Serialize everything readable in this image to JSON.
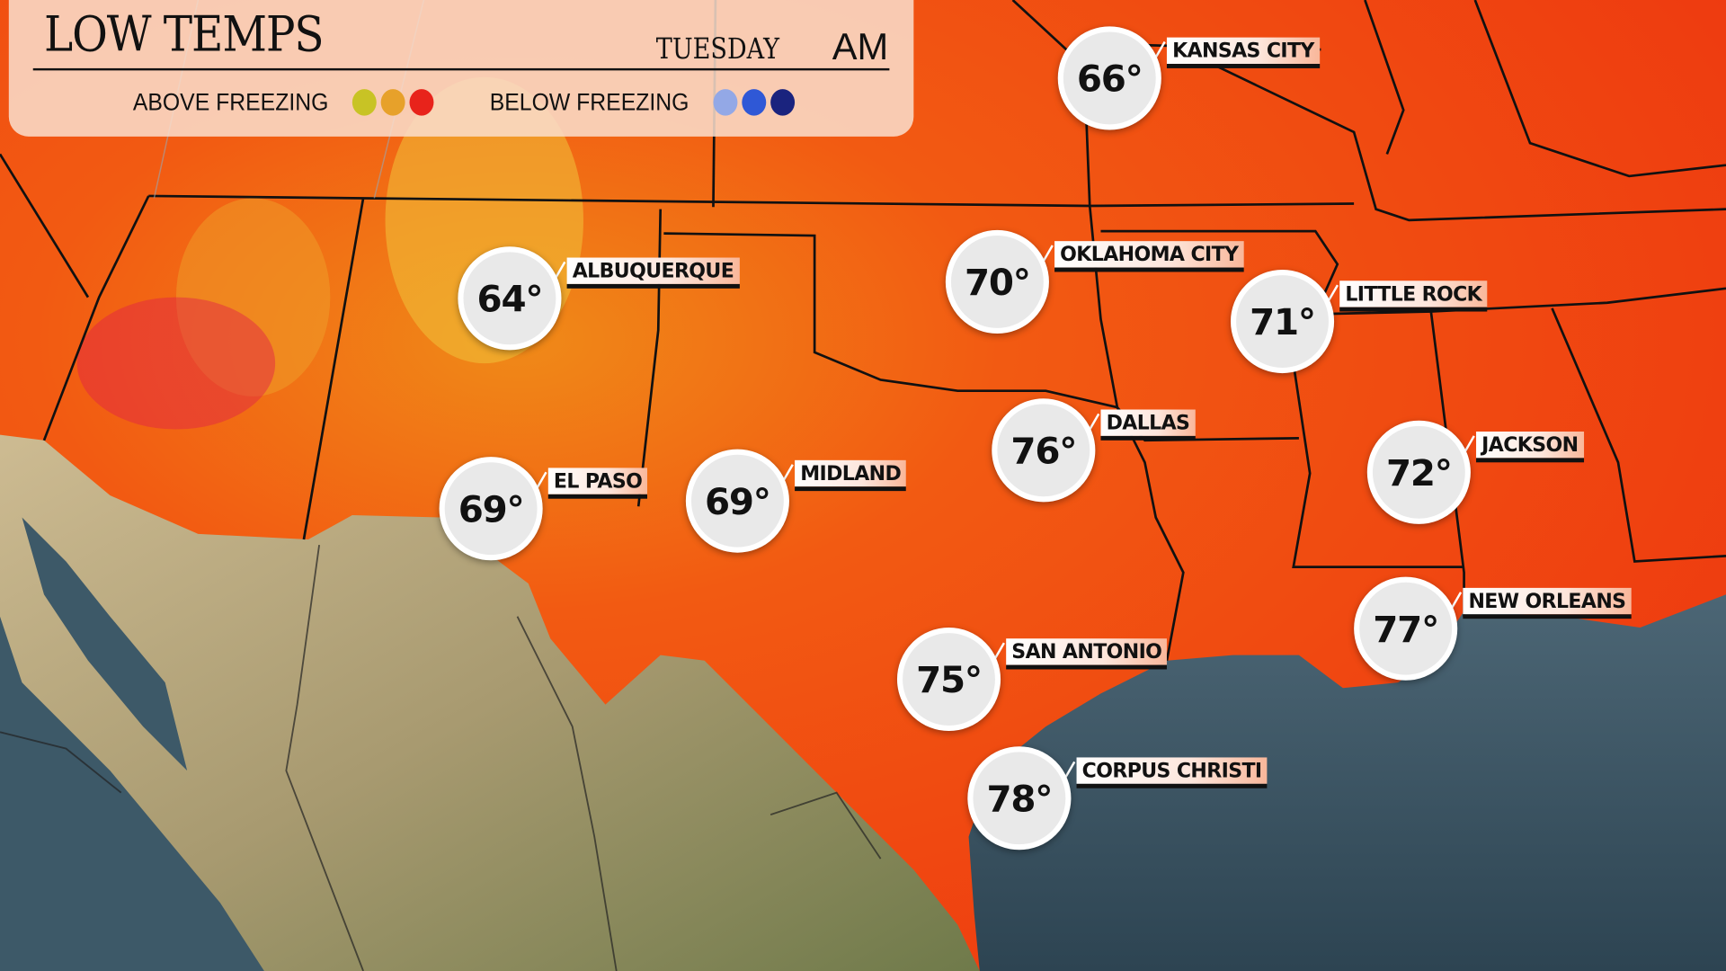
{
  "header": {
    "title": "LOW TEMPS",
    "day": "TUESDAY",
    "period": "AM",
    "legend": {
      "above_label": "ABOVE FREEZING",
      "above_colors": [
        "#c8c325",
        "#e7a12a",
        "#e8231b"
      ],
      "below_label": "BELOW FREEZING",
      "below_colors": [
        "#93a8e6",
        "#2f58d6",
        "#1a237e"
      ]
    }
  },
  "cities": [
    {
      "name": "KANSAS CITY",
      "temp": "66°"
    },
    {
      "name": "ALBUQUERQUE",
      "temp": "64°"
    },
    {
      "name": "OKLAHOMA CITY",
      "temp": "70°"
    },
    {
      "name": "LITTLE ROCK",
      "temp": "71°"
    },
    {
      "name": "DALLAS",
      "temp": "76°"
    },
    {
      "name": "EL PASO",
      "temp": "69°"
    },
    {
      "name": "MIDLAND",
      "temp": "69°"
    },
    {
      "name": "JACKSON",
      "temp": "72°"
    },
    {
      "name": "NEW ORLEANS",
      "temp": "77°"
    },
    {
      "name": "SAN ANTONIO",
      "temp": "75°"
    },
    {
      "name": "CORPUS CHRISTI",
      "temp": "78°"
    }
  ],
  "colors": {
    "land_warm": "#f14a12",
    "ocean": "#3a5566",
    "mexico": "#bfae88"
  }
}
